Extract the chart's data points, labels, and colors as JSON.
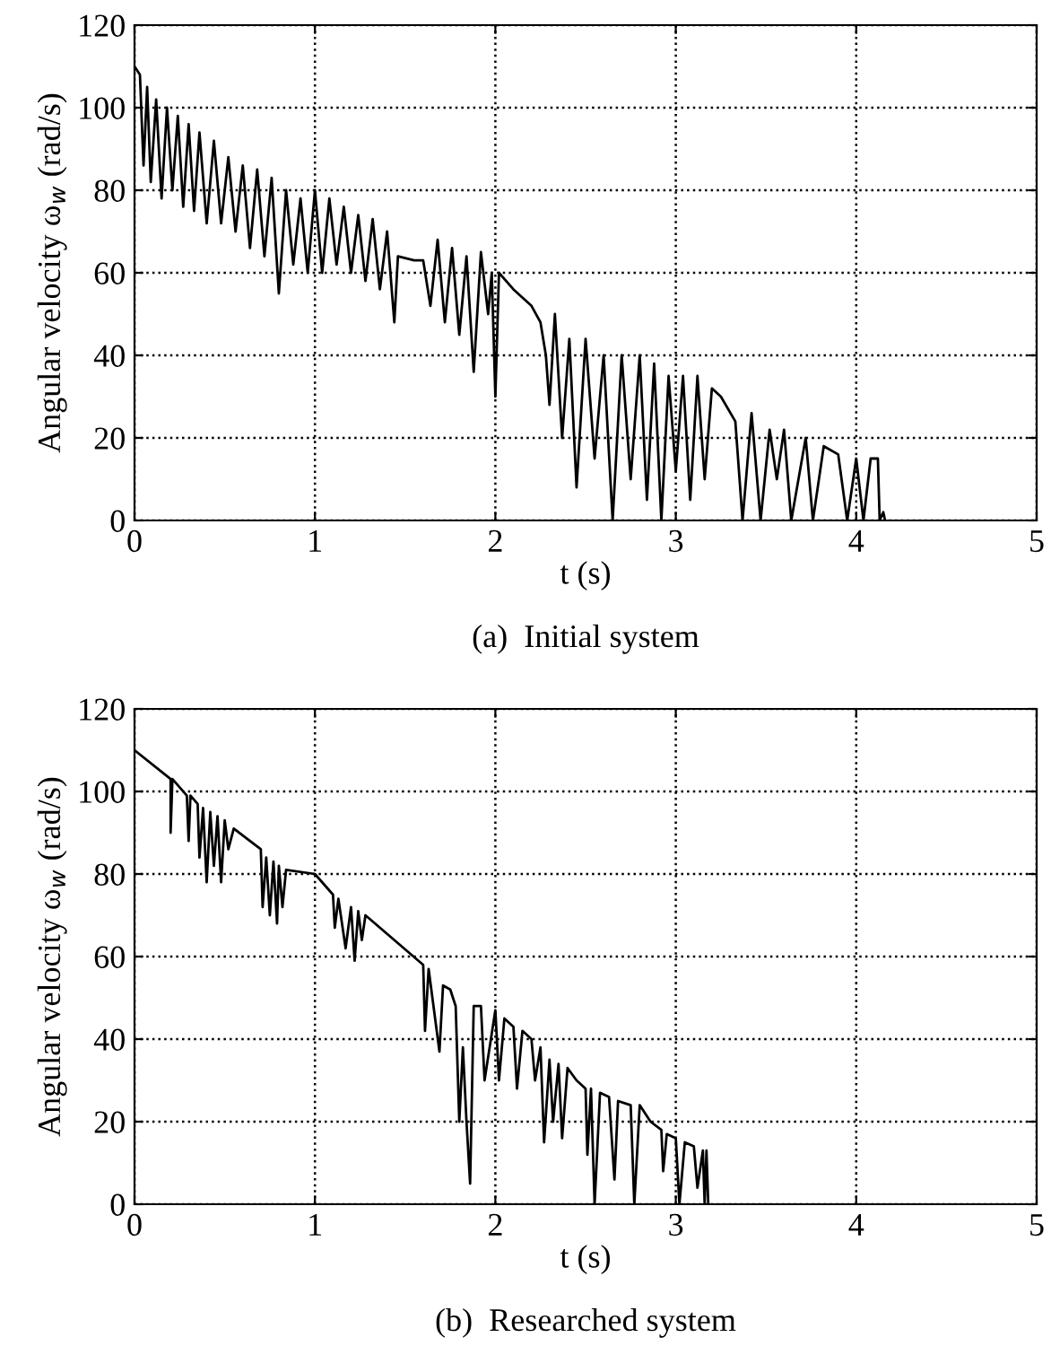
{
  "chart_data": [
    {
      "type": "line",
      "title": "(a)  Initial system",
      "xlabel": "t (s)",
      "ylabel": "Angular velocity ω$_{w}$ (rad/s)",
      "xlim": [
        0,
        5
      ],
      "ylim": [
        0,
        120
      ],
      "xticks": [
        0,
        1,
        2,
        3,
        4,
        5
      ],
      "yticks": [
        0,
        20,
        40,
        60,
        80,
        100,
        120
      ],
      "grid": true,
      "line_style": "solid",
      "marker": "none",
      "series": [
        {
          "color": "#000000",
          "x": [
            0,
            0.03,
            0.05,
            0.07,
            0.09,
            0.12,
            0.15,
            0.18,
            0.21,
            0.24,
            0.27,
            0.3,
            0.33,
            0.36,
            0.4,
            0.44,
            0.48,
            0.52,
            0.56,
            0.6,
            0.64,
            0.68,
            0.72,
            0.76,
            0.8,
            0.84,
            0.88,
            0.92,
            0.96,
            1.0,
            1.04,
            1.08,
            1.12,
            1.16,
            1.2,
            1.24,
            1.28,
            1.32,
            1.36,
            1.4,
            1.44,
            1.46,
            1.55,
            1.6,
            1.64,
            1.68,
            1.72,
            1.76,
            1.8,
            1.84,
            1.88,
            1.92,
            1.96,
            1.98,
            2.0,
            2.02,
            2.1,
            2.2,
            2.25,
            2.28,
            2.3,
            2.33,
            2.37,
            2.41,
            2.45,
            2.5,
            2.55,
            2.6,
            2.65,
            2.7,
            2.75,
            2.8,
            2.84,
            2.88,
            2.92,
            2.96,
            3.0,
            3.04,
            3.08,
            3.12,
            3.16,
            3.2,
            3.25,
            3.33,
            3.37,
            3.42,
            3.47,
            3.52,
            3.56,
            3.6,
            3.64,
            3.72,
            3.76,
            3.82,
            3.9,
            3.95,
            4.0,
            4.04,
            4.08,
            4.12,
            4.13,
            4.15,
            4.16
          ],
          "values": [
            110,
            108,
            86,
            105,
            82,
            102,
            78,
            100,
            80,
            98,
            76,
            96,
            75,
            94,
            72,
            92,
            72,
            88,
            70,
            86,
            66,
            85,
            64,
            83,
            55,
            80,
            62,
            78,
            60,
            80,
            60,
            78,
            62,
            76,
            60,
            74,
            58,
            73,
            56,
            70,
            48,
            64,
            63,
            63,
            52,
            68,
            48,
            66,
            45,
            64,
            36,
            65,
            50,
            60,
            30,
            60,
            56,
            52,
            48,
            40,
            28,
            50,
            20,
            44,
            8,
            44,
            15,
            40,
            0,
            40,
            10,
            40,
            5,
            38,
            0,
            35,
            12,
            35,
            5,
            35,
            10,
            32,
            30,
            24,
            0,
            26,
            0,
            22,
            10,
            22,
            0,
            20,
            0,
            18,
            16,
            0,
            15,
            0,
            15,
            15,
            0,
            2,
            0
          ]
        }
      ]
    },
    {
      "type": "line",
      "title": "(b)  Researched system",
      "xlabel": "t (s)",
      "ylabel": "Angular velocity ω$_{w}$ (rad/s)",
      "xlim": [
        0,
        5
      ],
      "ylim": [
        0,
        120
      ],
      "xticks": [
        0,
        1,
        2,
        3,
        4,
        5
      ],
      "yticks": [
        0,
        20,
        40,
        60,
        80,
        100,
        120
      ],
      "grid": true,
      "line_style": "solid",
      "marker": "none",
      "series": [
        {
          "color": "#000000",
          "x": [
            0,
            0.2,
            0.2,
            0.21,
            0.29,
            0.3,
            0.31,
            0.35,
            0.36,
            0.38,
            0.4,
            0.42,
            0.44,
            0.46,
            0.48,
            0.5,
            0.52,
            0.55,
            0.7,
            0.71,
            0.73,
            0.75,
            0.77,
            0.79,
            0.8,
            0.82,
            0.84,
            1.0,
            1.1,
            1.11,
            1.13,
            1.17,
            1.2,
            1.22,
            1.24,
            1.26,
            1.28,
            1.6,
            1.61,
            1.63,
            1.69,
            1.71,
            1.75,
            1.78,
            1.8,
            1.82,
            1.84,
            1.86,
            1.88,
            1.92,
            1.94,
            2.0,
            2.02,
            2.05,
            2.1,
            2.12,
            2.15,
            2.2,
            2.22,
            2.25,
            2.27,
            2.3,
            2.32,
            2.35,
            2.37,
            2.4,
            2.45,
            2.5,
            2.51,
            2.53,
            2.55,
            2.58,
            2.63,
            2.66,
            2.68,
            2.75,
            2.77,
            2.8,
            2.86,
            2.92,
            2.93,
            2.95,
            3.0,
            3.02,
            3.05,
            3.1,
            3.12,
            3.15,
            3.16,
            3.17,
            3.18
          ],
          "values": [
            110,
            103,
            90,
            103,
            99,
            88,
            99,
            97,
            84,
            96,
            78,
            95,
            82,
            94,
            78,
            93,
            86,
            91,
            86,
            72,
            84,
            70,
            83,
            68,
            82,
            72,
            81,
            80,
            75,
            67,
            74,
            62,
            72,
            59,
            71,
            64,
            70,
            58,
            42,
            57,
            37,
            53,
            52,
            48,
            20,
            38,
            20,
            5,
            48,
            48,
            30,
            47,
            30,
            45,
            43,
            28,
            42,
            40,
            30,
            38,
            15,
            35,
            20,
            34,
            16,
            33,
            30,
            28,
            12,
            28,
            0,
            27,
            26,
            6,
            25,
            24,
            0,
            24,
            20,
            18,
            8,
            17,
            16,
            0,
            15,
            14,
            4,
            13,
            0,
            13,
            0
          ]
        }
      ]
    }
  ]
}
